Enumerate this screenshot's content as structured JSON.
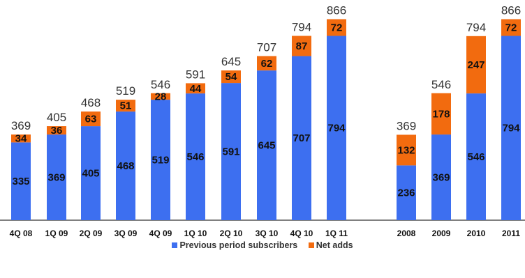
{
  "chart_data": {
    "type": "bar",
    "stacked": true,
    "groups": [
      {
        "categories": [
          "4Q 08",
          "1Q 09",
          "2Q 09",
          "3Q 09",
          "4Q 09",
          "1Q 10",
          "2Q 10",
          "3Q 10",
          "4Q 10",
          "1Q 11"
        ],
        "series": [
          {
            "name": "Previous period subscribers",
            "values": [
              335,
              369,
              405,
              468,
              519,
              546,
              591,
              645,
              707,
              794
            ]
          },
          {
            "name": "Net adds",
            "values": [
              34,
              36,
              63,
              51,
              28,
              44,
              54,
              62,
              87,
              72
            ]
          }
        ],
        "totals": [
          369,
          405,
          468,
          519,
          546,
          591,
          645,
          707,
          794,
          866
        ]
      },
      {
        "categories": [
          "2008",
          "2009",
          "2010",
          "2011"
        ],
        "series": [
          {
            "name": "Previous period subscribers",
            "values": [
              236,
              369,
              546,
              794
            ]
          },
          {
            "name": "Net adds",
            "values": [
              132,
              178,
              247,
              72
            ]
          }
        ],
        "totals": [
          369,
          546,
          794,
          866
        ]
      }
    ],
    "legend": [
      "Previous period subscribers",
      "Net adds"
    ],
    "legend_position": "bottom",
    "colors": {
      "previous": "#3d6ff0",
      "net_adds": "#f26b0f",
      "axis": "#000000"
    },
    "ylim": [
      0,
      900
    ],
    "grid": false
  }
}
